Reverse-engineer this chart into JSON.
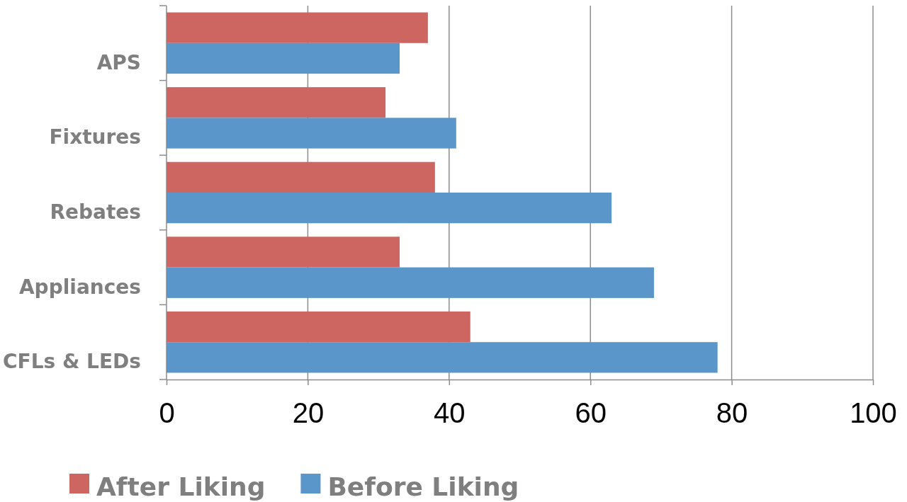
{
  "chart_data": {
    "type": "bar",
    "orientation": "horizontal",
    "categories": [
      "APS",
      "Fixtures",
      "Rebates",
      "Appliances",
      "CFLs & LEDs"
    ],
    "series": [
      {
        "name": "After Liking",
        "color": "#cd6660",
        "values": [
          37,
          31,
          38,
          33,
          43
        ]
      },
      {
        "name": "Before Liking",
        "color": "#5b96cb",
        "values": [
          33,
          41,
          63,
          69,
          78
        ]
      }
    ],
    "xlim": [
      0,
      100
    ],
    "xticks": [
      0,
      20,
      40,
      60,
      80,
      100
    ],
    "grid": "x",
    "legend": "bottom"
  }
}
